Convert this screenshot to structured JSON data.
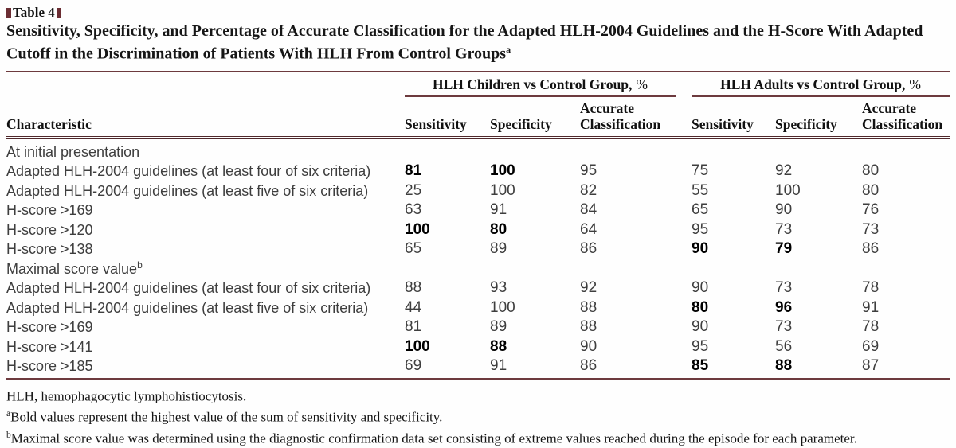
{
  "colors": {
    "rule_maroon": "#6d3a3e",
    "heavy_rule": "#4f282b",
    "marker_square": "#6b2d33",
    "body_text": "#3e3e3e",
    "bold_text": "#000000",
    "background": "#fefefe"
  },
  "table": {
    "label": "Table 4",
    "title": "Sensitivity, Specificity, and Percentage of Accurate Classification for the Adapted HLH-2004 Guidelines and the H-Score With Adapted Cutoff in the Discrimination of Patients With HLH From Control Groups",
    "title_footnote_mark": "a",
    "characteristic_header": "Characteristic",
    "col_groups": [
      {
        "label": "HLH Children vs Control Group,",
        "unit": "%"
      },
      {
        "label": "HLH Adults vs Control Group,",
        "unit": "%"
      }
    ],
    "sub_headers": [
      "Sensitivity",
      "Specificity",
      "Accurate Classification",
      "Sensitivity",
      "Specificity",
      "Accurate Classification"
    ],
    "sections": [
      {
        "header": "At initial presentation",
        "mark": "",
        "rows": [
          {
            "label": "Adapted HLH-2004 guidelines (at least four of six criteria)",
            "values": [
              "81",
              "100",
              "95",
              "75",
              "92",
              "80"
            ],
            "bold": [
              true,
              true,
              false,
              false,
              false,
              false
            ]
          },
          {
            "label": "Adapted HLH-2004 guidelines (at least five of six criteria)",
            "values": [
              "25",
              "100",
              "82",
              "55",
              "100",
              "80"
            ],
            "bold": [
              false,
              false,
              false,
              false,
              false,
              false
            ]
          },
          {
            "label": "H-score >169",
            "values": [
              "63",
              "91",
              "84",
              "65",
              "90",
              "76"
            ],
            "bold": [
              false,
              false,
              false,
              false,
              false,
              false
            ]
          },
          {
            "label": "H-score >120",
            "values": [
              "100",
              "80",
              "64",
              "95",
              "73",
              "73"
            ],
            "bold": [
              true,
              true,
              false,
              false,
              false,
              false
            ]
          },
          {
            "label": "H-score >138",
            "values": [
              "65",
              "89",
              "86",
              "90",
              "79",
              "86"
            ],
            "bold": [
              false,
              false,
              false,
              true,
              true,
              false
            ]
          }
        ]
      },
      {
        "header": "Maximal score value",
        "mark": "b",
        "rows": [
          {
            "label": "Adapted HLH-2004 guidelines (at least four of six criteria)",
            "values": [
              "88",
              "93",
              "92",
              "90",
              "73",
              "78"
            ],
            "bold": [
              false,
              false,
              false,
              false,
              false,
              false
            ]
          },
          {
            "label": "Adapted HLH-2004 guidelines (at least five of six criteria)",
            "values": [
              "44",
              "100",
              "88",
              "80",
              "96",
              "91"
            ],
            "bold": [
              false,
              false,
              false,
              true,
              true,
              false
            ]
          },
          {
            "label": "H-score >169",
            "values": [
              "81",
              "89",
              "88",
              "90",
              "73",
              "78"
            ],
            "bold": [
              false,
              false,
              false,
              false,
              false,
              false
            ]
          },
          {
            "label": "H-score >141",
            "values": [
              "100",
              "88",
              "90",
              "95",
              "56",
              "69"
            ],
            "bold": [
              true,
              true,
              false,
              false,
              false,
              false
            ]
          },
          {
            "label": "H-score >185",
            "values": [
              "69",
              "91",
              "86",
              "85",
              "88",
              "87"
            ],
            "bold": [
              false,
              false,
              false,
              true,
              true,
              false
            ]
          }
        ]
      }
    ],
    "footnotes": [
      {
        "sup": "",
        "text": "HLH, hemophagocytic lymphohistiocytosis."
      },
      {
        "sup": "a",
        "text": "Bold values represent the highest value of the sum of sensitivity and specificity."
      },
      {
        "sup": "b",
        "text": "Maximal score value was determined using the diagnostic confirmation data set consisting of extreme values reached during the episode for each parameter."
      }
    ]
  }
}
